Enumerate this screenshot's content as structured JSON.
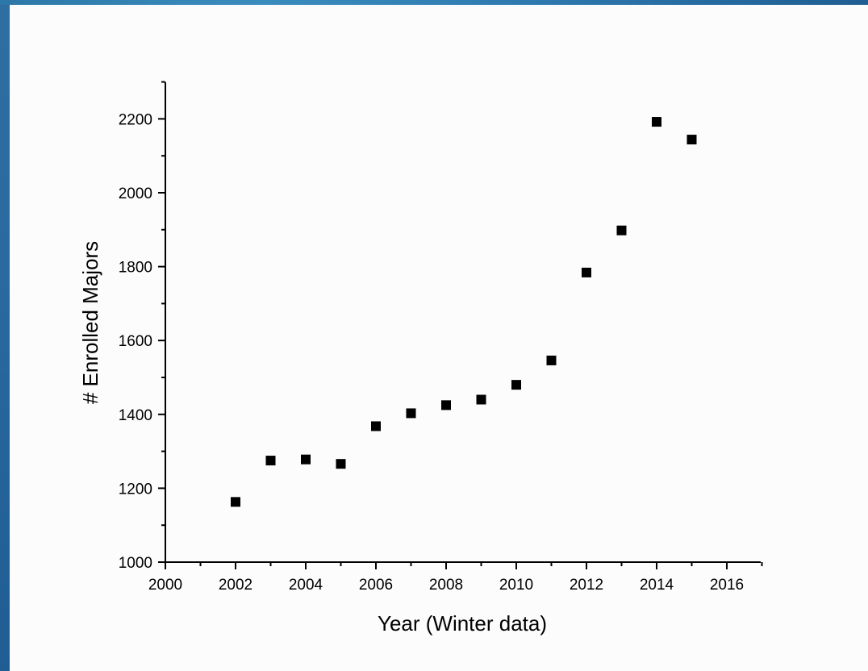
{
  "chart_data": {
    "type": "scatter",
    "title": "",
    "xlabel": "Year (Winter data)",
    "ylabel": "# Enrolled Majors",
    "xlim": [
      2000,
      2017
    ],
    "ylim": [
      1000,
      2300
    ],
    "x_ticks": [
      2000,
      2002,
      2004,
      2006,
      2008,
      2010,
      2012,
      2014,
      2016
    ],
    "x_tick_labels": [
      "2000",
      "2002",
      "2004",
      "2006",
      "2008",
      "2010",
      "2012",
      "2014",
      "2016"
    ],
    "y_ticks": [
      1000,
      1200,
      1400,
      1600,
      1800,
      2000,
      2200
    ],
    "y_tick_labels": [
      "1000",
      "1200",
      "1400",
      "1600",
      "1800",
      "2000",
      "2200"
    ],
    "grid": false,
    "marker": "square",
    "marker_color": "#000000",
    "series": [
      {
        "x": [
          2002,
          2003,
          2004,
          2005,
          2006,
          2007,
          2008,
          2009,
          2010,
          2011,
          2012,
          2013,
          2014,
          2015
        ],
        "y": [
          1163,
          1275,
          1278,
          1266,
          1368,
          1403,
          1425,
          1440,
          1480,
          1546,
          1784,
          1898,
          2192,
          2144
        ]
      }
    ]
  }
}
